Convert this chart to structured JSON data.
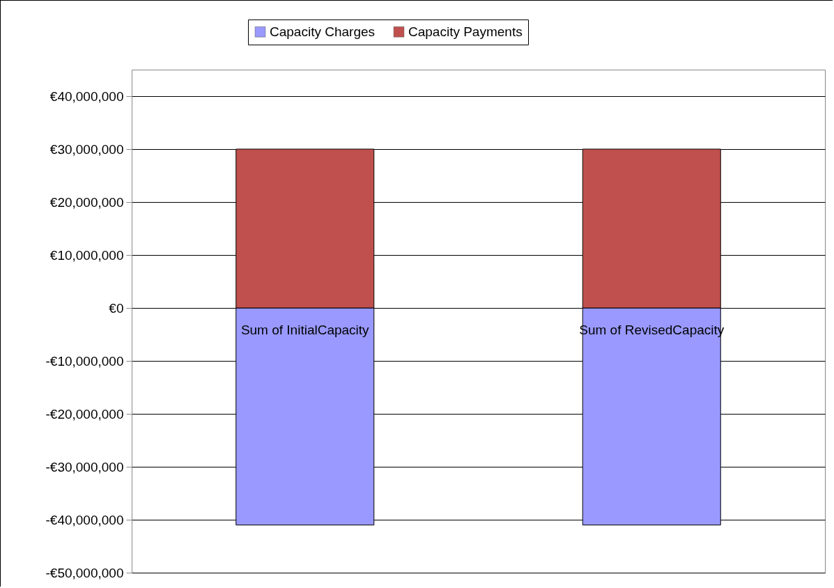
{
  "chart_data": {
    "type": "bar",
    "stacked": true,
    "categories": [
      "Sum of InitialCapacity",
      "Sum of RevisedCapacity"
    ],
    "series": [
      {
        "name": "Capacity Charges",
        "color": "#9999ff",
        "values": [
          -41000000,
          -41000000
        ]
      },
      {
        "name": "Capacity Payments",
        "color": "#c0504d",
        "values": [
          30000000,
          30000000
        ]
      }
    ],
    "ylim": [
      -50000000,
      45000000
    ],
    "yticks": [
      {
        "value": -50000000,
        "label": "-€50,000,000"
      },
      {
        "value": -40000000,
        "label": "-€40,000,000"
      },
      {
        "value": -30000000,
        "label": "-€30,000,000"
      },
      {
        "value": -20000000,
        "label": "-€20,000,000"
      },
      {
        "value": -10000000,
        "label": "-€10,000,000"
      },
      {
        "value": 0,
        "label": "€0"
      },
      {
        "value": 10000000,
        "label": "€10,000,000"
      },
      {
        "value": 20000000,
        "label": "€20,000,000"
      },
      {
        "value": 30000000,
        "label": "€30,000,000"
      },
      {
        "value": 40000000,
        "label": "€40,000,000"
      }
    ],
    "grid": "y",
    "legend": "top"
  }
}
